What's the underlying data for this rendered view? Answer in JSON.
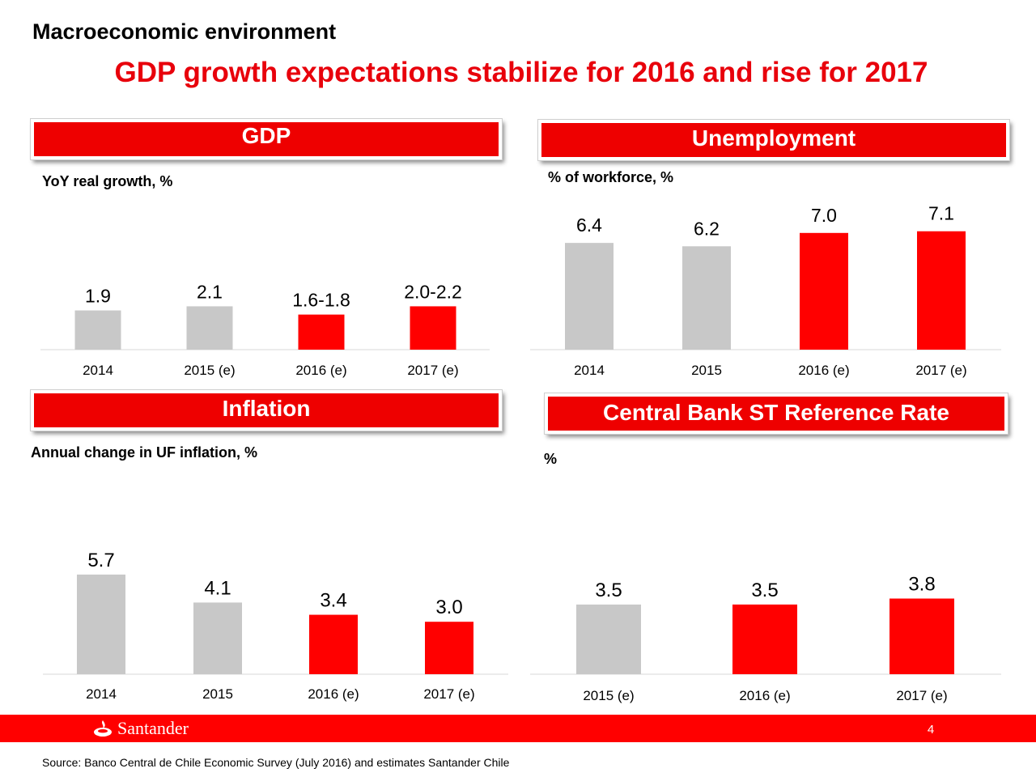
{
  "slide": {
    "header_title": "Macroeconomic environment",
    "main_title": "GDP growth expectations stabilize for 2016 and rise for 2017",
    "page_number": "4",
    "brand": "Santander",
    "source": "Source: Banco Central de Chile Economic Survey (July 2016) and estimates Santander Chile",
    "colors": {
      "actual": "#c8c8c8",
      "estimate": "#ff0000",
      "banner": "#ee0000",
      "title_red": "#e8000b"
    }
  },
  "chart_data": [
    {
      "id": "gdp",
      "type": "bar",
      "title": "GDP",
      "subtitle": "YoY real growth, %",
      "categories": [
        "2014",
        "2015 (e)",
        "2016 (e)",
        "2017 (e)"
      ],
      "values": [
        1.9,
        2.1,
        1.7,
        2.1
      ],
      "labels": [
        "1.9",
        "2.1",
        "1.6-1.8",
        "2.0-2.2"
      ],
      "kind": [
        "actual",
        "actual",
        "estimate",
        "estimate"
      ],
      "ylim": [
        0,
        7.5
      ],
      "grid": false,
      "legend": "none"
    },
    {
      "id": "unemployment",
      "type": "bar",
      "title": "Unemployment",
      "subtitle": "% of workforce, %",
      "categories": [
        "2014",
        "2015",
        "2016 (e)",
        "2017 (e)"
      ],
      "values": [
        6.4,
        6.2,
        7.0,
        7.1
      ],
      "labels": [
        "6.4",
        "6.2",
        "7.0",
        "7.1"
      ],
      "kind": [
        "actual",
        "actual",
        "estimate",
        "estimate"
      ],
      "ylim": [
        0,
        7.5
      ],
      "grid": false,
      "legend": "none"
    },
    {
      "id": "inflation",
      "type": "bar",
      "title": "Inflation",
      "subtitle": "Annual change in UF inflation, %",
      "categories": [
        "2014",
        "2015",
        "2016 (e)",
        "2017 (e)"
      ],
      "values": [
        5.7,
        4.1,
        3.4,
        3.0
      ],
      "labels": [
        "5.7",
        "4.1",
        "3.4",
        "3.0"
      ],
      "kind": [
        "actual",
        "actual",
        "estimate",
        "estimate"
      ],
      "ylim": [
        0,
        6.2
      ],
      "grid": false,
      "legend": "none"
    },
    {
      "id": "central-bank-rate",
      "type": "bar",
      "title": "Central Bank ST Reference Rate",
      "subtitle": "%",
      "categories": [
        "2015 (e)",
        "2016 (e)",
        "2017 (e)"
      ],
      "values": [
        3.5,
        3.5,
        3.8
      ],
      "labels": [
        "3.5",
        "3.5",
        "3.8"
      ],
      "kind": [
        "actual",
        "estimate",
        "estimate"
      ],
      "ylim": [
        0,
        6.2
      ],
      "grid": false,
      "legend": "none"
    }
  ]
}
